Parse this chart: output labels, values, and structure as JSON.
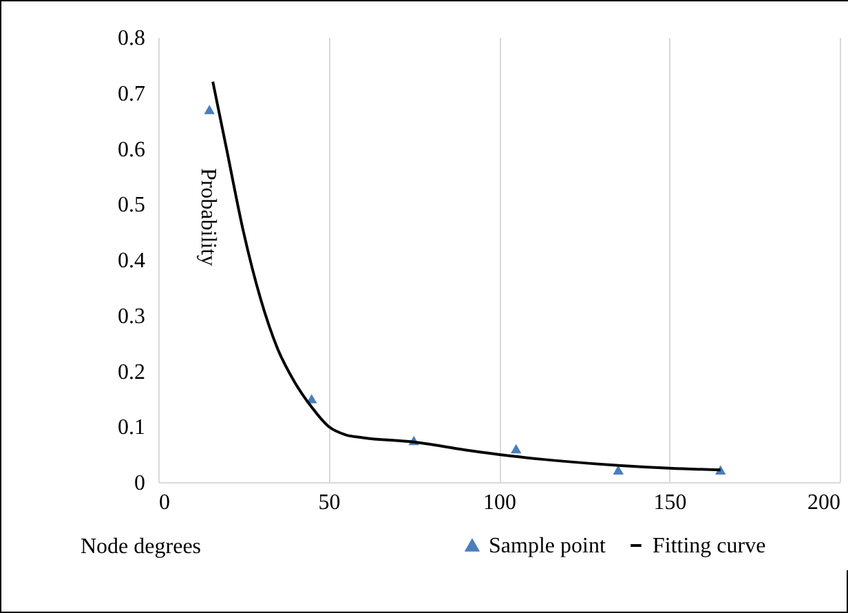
{
  "chart_data": {
    "type": "scatter",
    "xlabel": "Node degrees",
    "ylabel": "Probability",
    "xlim": [
      0,
      200
    ],
    "xticks": [
      0,
      50,
      100,
      150,
      200
    ],
    "ylim": [
      0,
      0.8
    ],
    "yticks": [
      0,
      0.1,
      0.2,
      0.3,
      0.4,
      0.5,
      0.6,
      0.7,
      0.8
    ],
    "grid": "x",
    "legend": "bottom",
    "marker": "triangle",
    "series": [
      {
        "name": "Sample point",
        "color": "#4a7ebb",
        "x": [
          15,
          45,
          75,
          105,
          135,
          165
        ],
        "values": [
          0.67,
          0.15,
          0.075,
          0.06,
          0.022,
          0.022
        ]
      },
      {
        "name": "Fitting curve",
        "type": "line",
        "color": "#000000",
        "marker": "none",
        "line_style": "solid",
        "x": [
          16,
          20,
          25,
          30,
          35,
          40,
          45,
          50,
          55,
          60,
          75,
          90,
          105,
          120,
          135,
          150,
          165
        ],
        "values": [
          0.72,
          0.6,
          0.45,
          0.33,
          0.24,
          0.18,
          0.135,
          0.1,
          0.085,
          0.08,
          0.072,
          0.058,
          0.046,
          0.037,
          0.03,
          0.025,
          0.022
        ]
      }
    ]
  }
}
